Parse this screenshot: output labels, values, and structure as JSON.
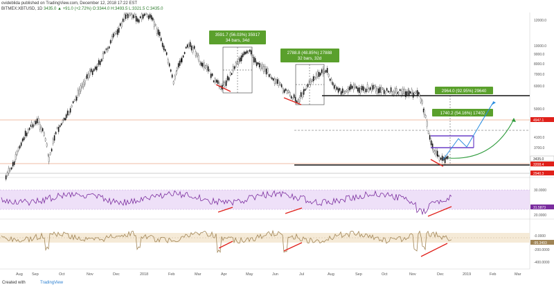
{
  "header": {
    "publisher_line": "ovideblida published on TradingView.com, December 12, 2018 17:22 EST",
    "symbol": "BITMEX:XBTUSD, 1D",
    "ohlc": "3435.0 ▲ +91.0 (+2.72%) O:3344.0 H:3493.5 L:3321.5 C:3435.0"
  },
  "price_axis": {
    "labels": [
      "12000.0",
      "10000.0",
      "9000.0",
      "8000.0",
      "7000.0",
      "6000.0",
      "5000.0",
      "4100.0",
      "3700.0",
      "3435.0",
      "3200.0",
      "2940.0"
    ],
    "marker_4947": "4947.1",
    "marker_3208": "3208.4",
    "marker_2940": "2940.3",
    "current": "3435.0"
  },
  "rsi_axis": {
    "labels": [
      "30.0000",
      "20.0000"
    ],
    "current": "31.5873"
  },
  "osc_axis": {
    "labels": [
      "-0.0000",
      "-200.0000",
      "-400.0000"
    ],
    "current": "-95.3493"
  },
  "time_axis": [
    "Aug",
    "Sep",
    "Oct",
    "Nov",
    "Dec",
    "2018",
    "Feb",
    "Mar",
    "Apr",
    "May",
    "Jun",
    "Jul",
    "Aug",
    "Sep",
    "Oct",
    "Nov",
    "Dec",
    "2019",
    "Feb",
    "Mar"
  ],
  "annotations": {
    "box1_line1": "3591.7 (56.03%) 35917",
    "box1_line2": "34 bars, 34d",
    "box2_line1": "2788.8 (48.85%) 27888",
    "box2_line2": "32 bars, 32d",
    "target1": "2964.0 (92.95%) 29640",
    "target2": "1740.2 (54.16%) 17402"
  },
  "footer": {
    "created_with": "Created with",
    "logo": "TradingView"
  },
  "colors": {
    "green_box": "#5aa02c",
    "rsi_band": "#e8d6f6",
    "rsi_line": "#7a2c9e",
    "osc_band": "#f3e6d0",
    "osc_line": "#a08455",
    "divergence": "#e0201a",
    "arrow_blue": "#2a8de0",
    "arrow_green": "#2c9a3a"
  }
}
